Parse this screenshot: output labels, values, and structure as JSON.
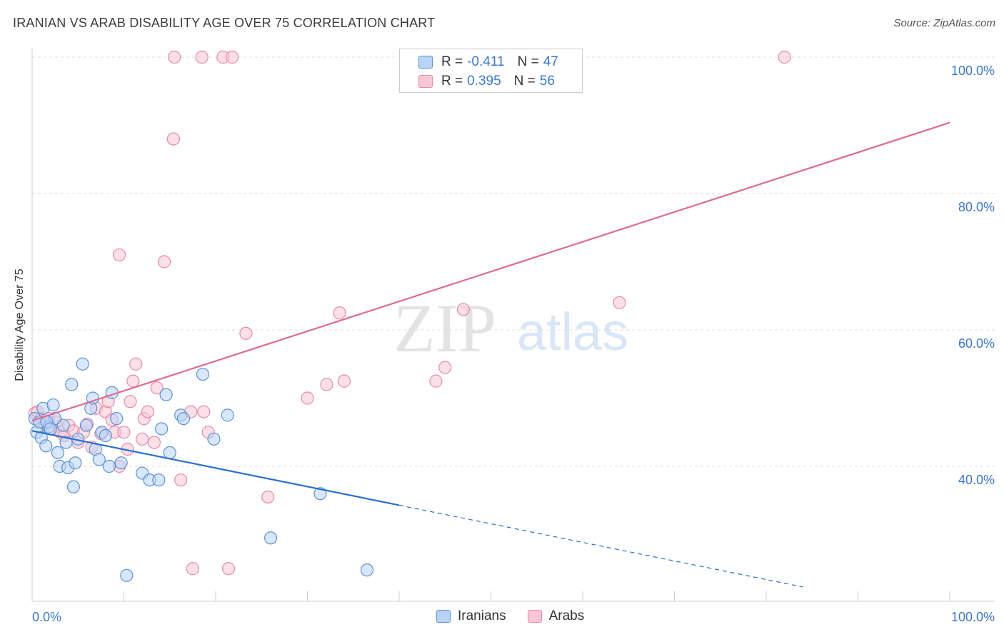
{
  "title": "IRANIAN VS ARAB DISABILITY AGE OVER 75 CORRELATION CHART",
  "source": "Source: ZipAtlas.com",
  "watermark": {
    "zip": "ZIP",
    "atlas": "atlas"
  },
  "legend": {
    "iranians": {
      "r_label": "R =",
      "r_value": "-0.411",
      "n_label": "N =",
      "n_value": "47"
    },
    "arabs": {
      "r_label": "R =",
      "r_value": "0.395",
      "n_label": "N =",
      "n_value": "56"
    }
  },
  "colors": {
    "iranians_fill": "#b9d3f5",
    "iranians_stroke": "#5b93d6",
    "iranians_line": "#2a6fcf",
    "arabs_fill": "#f9c6d6",
    "arabs_stroke": "#e68aa8",
    "arabs_line": "#e06a94",
    "tick_text": "#3b78c9",
    "grid": "#dddddd"
  },
  "chart_data": {
    "type": "scatter",
    "title": "IRANIAN VS ARAB DISABILITY AGE OVER 75 CORRELATION CHART",
    "xlabel": "",
    "ylabel": "Disability Age Over 75",
    "xlim": [
      0,
      100
    ],
    "ylim": [
      20,
      102
    ],
    "x_tick_labels": [
      "0.0%",
      "100.0%"
    ],
    "y_ticks": [
      40,
      60,
      80,
      100
    ],
    "y_tick_labels": [
      "40.0%",
      "60.0%",
      "80.0%",
      "100.0%"
    ],
    "legend": [
      "Iranians",
      "Arabs"
    ],
    "series": [
      {
        "name": "Iranians",
        "points": [
          [
            0.3,
            47.0
          ],
          [
            0.5,
            45.0
          ],
          [
            0.8,
            46.5
          ],
          [
            1.0,
            44.2
          ],
          [
            1.2,
            48.5
          ],
          [
            1.5,
            43.0
          ],
          [
            1.8,
            45.8
          ],
          [
            2.3,
            49.0
          ],
          [
            2.5,
            47.0
          ],
          [
            2.8,
            42.0
          ],
          [
            3.0,
            40.0
          ],
          [
            3.4,
            46.0
          ],
          [
            3.7,
            43.5
          ],
          [
            3.9,
            39.8
          ],
          [
            4.3,
            52.0
          ],
          [
            4.5,
            37.0
          ],
          [
            4.7,
            40.5
          ],
          [
            5.0,
            44.0
          ],
          [
            5.5,
            55.0
          ],
          [
            5.9,
            46.0
          ],
          [
            6.4,
            48.5
          ],
          [
            6.6,
            50.0
          ],
          [
            6.9,
            42.5
          ],
          [
            7.3,
            41.0
          ],
          [
            7.6,
            45.0
          ],
          [
            8.0,
            44.5
          ],
          [
            8.4,
            40.0
          ],
          [
            8.7,
            50.8
          ],
          [
            9.2,
            47.0
          ],
          [
            9.7,
            40.5
          ],
          [
            10.3,
            24.0
          ],
          [
            12.0,
            39.0
          ],
          [
            12.8,
            38.0
          ],
          [
            13.8,
            38.0
          ],
          [
            14.1,
            45.5
          ],
          [
            14.6,
            50.5
          ],
          [
            15.0,
            42.0
          ],
          [
            16.2,
            47.5
          ],
          [
            16.5,
            47.0
          ],
          [
            18.6,
            53.5
          ],
          [
            19.8,
            44.0
          ],
          [
            21.3,
            47.5
          ],
          [
            26.0,
            29.5
          ],
          [
            31.4,
            36.0
          ],
          [
            36.5,
            24.8
          ],
          [
            1.6,
            46.5
          ],
          [
            2.0,
            45.5
          ]
        ]
      },
      {
        "name": "Arabs",
        "points": [
          [
            0.3,
            47.8
          ],
          [
            0.6,
            48.0
          ],
          [
            1.0,
            47.0
          ],
          [
            1.4,
            46.2
          ],
          [
            1.8,
            47.0
          ],
          [
            2.2,
            45.5
          ],
          [
            2.6,
            46.5
          ],
          [
            3.1,
            45.0
          ],
          [
            3.5,
            44.5
          ],
          [
            4.0,
            46.0
          ],
          [
            4.5,
            45.2
          ],
          [
            5.0,
            43.5
          ],
          [
            5.6,
            45.0
          ],
          [
            6.0,
            46.2
          ],
          [
            6.5,
            42.8
          ],
          [
            7.0,
            48.5
          ],
          [
            7.5,
            44.8
          ],
          [
            8.0,
            48.0
          ],
          [
            8.3,
            49.5
          ],
          [
            8.7,
            46.8
          ],
          [
            9.0,
            45.0
          ],
          [
            9.5,
            40.0
          ],
          [
            10.0,
            45.0
          ],
          [
            10.4,
            42.5
          ],
          [
            10.7,
            49.5
          ],
          [
            11.0,
            52.5
          ],
          [
            11.3,
            55.0
          ],
          [
            12.0,
            44.0
          ],
          [
            12.2,
            47.0
          ],
          [
            12.6,
            48.0
          ],
          [
            13.3,
            43.5
          ],
          [
            13.6,
            51.5
          ],
          [
            9.5,
            71.0
          ],
          [
            14.4,
            70.0
          ],
          [
            15.4,
            88.0
          ],
          [
            16.2,
            38.0
          ],
          [
            17.3,
            48.0
          ],
          [
            17.5,
            25.0
          ],
          [
            18.7,
            48.0
          ],
          [
            19.2,
            45.0
          ],
          [
            21.4,
            25.0
          ],
          [
            23.3,
            59.5
          ],
          [
            25.7,
            35.5
          ],
          [
            30.0,
            50.0
          ],
          [
            32.1,
            52.0
          ],
          [
            33.5,
            62.5
          ],
          [
            34.0,
            52.5
          ],
          [
            44.0,
            52.5
          ],
          [
            45.0,
            54.5
          ],
          [
            47.0,
            63.0
          ],
          [
            64.0,
            64.0
          ],
          [
            82.0,
            100.0
          ],
          [
            15.5,
            100.0
          ],
          [
            18.5,
            100.0
          ],
          [
            20.8,
            100.0
          ],
          [
            21.8,
            100.0
          ]
        ]
      }
    ],
    "trendlines": [
      {
        "name": "Iranians",
        "x": [
          0,
          40
        ],
        "y": [
          45.2,
          34.3
        ],
        "dashed_to_x": 84
      },
      {
        "name": "Arabs",
        "x": [
          0,
          100
        ],
        "y": [
          46.7,
          90.4
        ]
      }
    ]
  }
}
